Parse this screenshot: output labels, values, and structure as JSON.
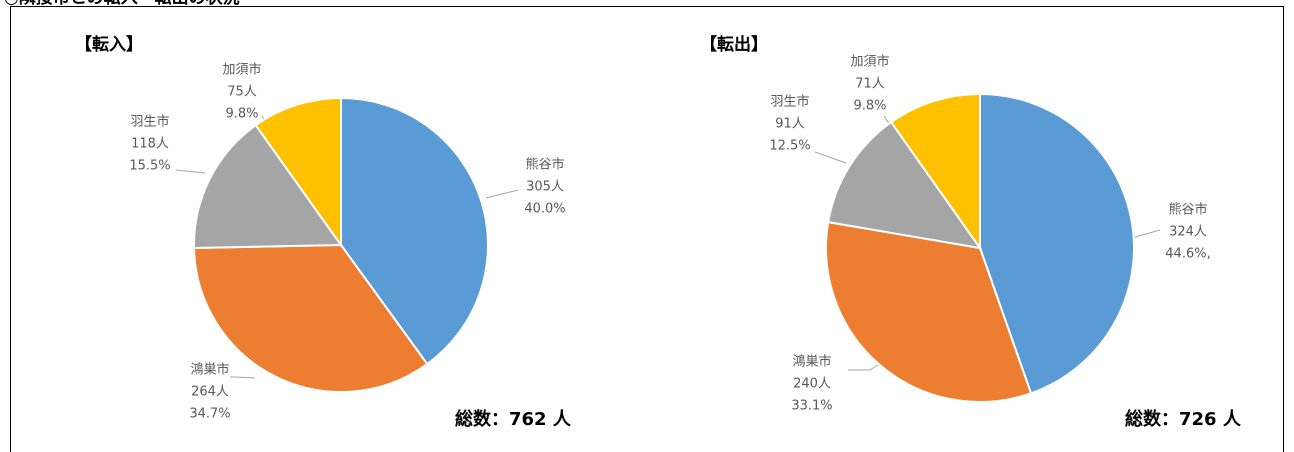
{
  "heading": "○隣接市との転入・転出の状況",
  "chart_data": [
    {
      "type": "pie",
      "title": "【転入】",
      "total": "総数：762 人",
      "categories": [
        "熊谷市",
        "鴻巣市",
        "羽生市",
        "加須市"
      ],
      "values": [
        305,
        264,
        118,
        75
      ],
      "value_labels": [
        "305人",
        "264人",
        "118人",
        "75人"
      ],
      "percent_labels": [
        "40.0%",
        "34.7%",
        "15.5%",
        "9.8%"
      ],
      "colors": [
        "#5b9bd5",
        "#ed7d31",
        "#a5a5a5",
        "#ffc000"
      ]
    },
    {
      "type": "pie",
      "title": "【転出】",
      "total": "総数：726 人",
      "categories": [
        "熊谷市",
        "鴻巣市",
        "羽生市",
        "加須市"
      ],
      "values": [
        324,
        240,
        91,
        71
      ],
      "value_labels": [
        "324人",
        "240人",
        "91人",
        "71人"
      ],
      "percent_labels": [
        "44.6%,",
        "33.1%",
        "12.5%",
        "9.8%"
      ],
      "colors": [
        "#5b9bd5",
        "#ed7d31",
        "#a5a5a5",
        "#ffc000"
      ]
    }
  ]
}
